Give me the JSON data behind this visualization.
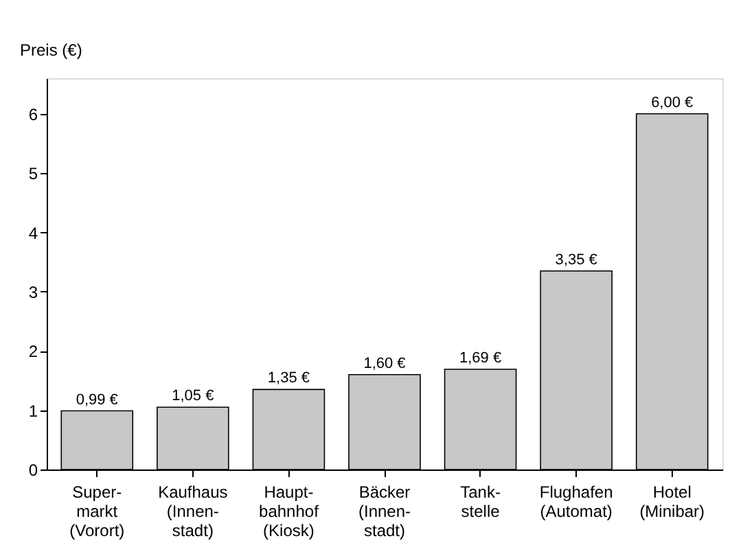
{
  "chart_data": {
    "type": "bar",
    "ylabel": "Preis (€)",
    "categories": [
      "Super-\nmarkt\n(Vorort)",
      "Kaufhaus\n(Innen-\nstadt)",
      "Haupt-\nbahnhof\n(Kiosk)",
      "Bäcker\n(Innen-\nstadt)",
      "Tank-\nstelle",
      "Flughafen\n(Automat)",
      "Hotel\n(Minibar)"
    ],
    "values": [
      0.99,
      1.05,
      1.35,
      1.6,
      1.69,
      3.35,
      6.0
    ],
    "value_labels": [
      "0,99 €",
      "1,05 €",
      "1,35 €",
      "1,60 €",
      "1,69 €",
      "3,35 €",
      "6,00 €"
    ],
    "color": "#c8c8c8",
    "ylim": [
      0,
      6.6
    ],
    "yticks": [
      0,
      1,
      2,
      3,
      4,
      5,
      6
    ],
    "grid": false
  }
}
